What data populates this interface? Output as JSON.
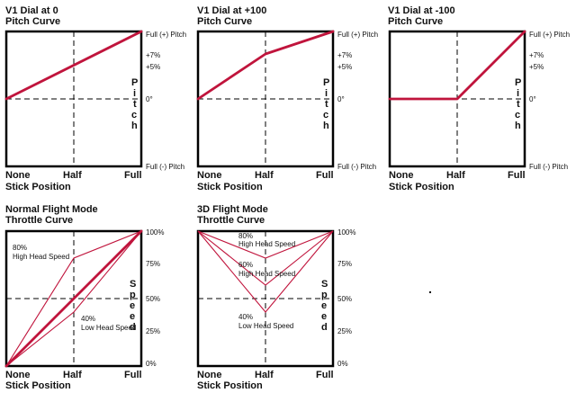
{
  "panels": {
    "p1": {
      "title1": "V1 Dial at 0",
      "title2": "Pitch Curve",
      "lbl_full_pos": "Full (+) Pitch",
      "lbl_plus7": "+7%",
      "lbl_plus5": "+5%",
      "lbl_zero": "0°",
      "lbl_full_neg": "Full (-) Pitch",
      "vert_letters": [
        "P",
        "i",
        "t",
        "c",
        "h"
      ],
      "x_none": "None",
      "x_half": "Half",
      "x_full": "Full",
      "x_title": "Stick Position"
    },
    "p2": {
      "title1": "V1 Dial at +100",
      "title2": "Pitch Curve",
      "lbl_full_pos": "Full (+) Pitch",
      "lbl_plus7": "+7%",
      "lbl_plus5": "+5%",
      "lbl_zero": "0°",
      "lbl_full_neg": "Full (-) Pitch",
      "vert_letters": [
        "P",
        "i",
        "t",
        "c",
        "h"
      ],
      "x_none": "None",
      "x_half": "Half",
      "x_full": "Full",
      "x_title": "Stick Position"
    },
    "p3": {
      "title1": "V1 Dial at -100",
      "title2": "Pitch Curve",
      "lbl_full_pos": "Full (+) Pitch",
      "lbl_plus7": "+7%",
      "lbl_plus5": "+5%",
      "lbl_zero": "0°",
      "lbl_full_neg": "Full (-) Pitch",
      "vert_letters": [
        "P",
        "i",
        "t",
        "c",
        "h"
      ],
      "x_none": "None",
      "x_half": "Half",
      "x_full": "Full",
      "x_title": "Stick Position"
    },
    "p4": {
      "title1": "Normal Flight Mode",
      "title2": "Throttle Curve",
      "lbl_80": "80%",
      "lbl_high": "High Head Speed",
      "lbl_40": "40%",
      "lbl_low": "Low Head Speed",
      "tick_100": "100%",
      "tick_75": "75%",
      "tick_50": "50%",
      "tick_25": "25%",
      "tick_0": "0%",
      "vert_letters": [
        "S",
        "p",
        "e",
        "e",
        "d"
      ],
      "x_none": "None",
      "x_half": "Half",
      "x_full": "Full",
      "x_title": "Stick Position"
    },
    "p5": {
      "title1": "3D Flight Mode",
      "title2": "Throttle Curve",
      "lbl_80": "80%",
      "lbl_high1": "High Head Speed",
      "lbl_60": "60%",
      "lbl_high2": "High Head Speed",
      "lbl_40": "40%",
      "lbl_low": "Low Head Speed",
      "tick_100": "100%",
      "tick_75": "75%",
      "tick_50": "50%",
      "tick_25": "25%",
      "tick_0": "0%",
      "vert_letters": [
        "S",
        "p",
        "e",
        "e",
        "d"
      ],
      "x_none": "None",
      "x_half": "Half",
      "x_full": "Full",
      "x_title": "Stick Position"
    }
  },
  "colors": {
    "curve": "#c0143c",
    "frame": "#000000"
  }
}
